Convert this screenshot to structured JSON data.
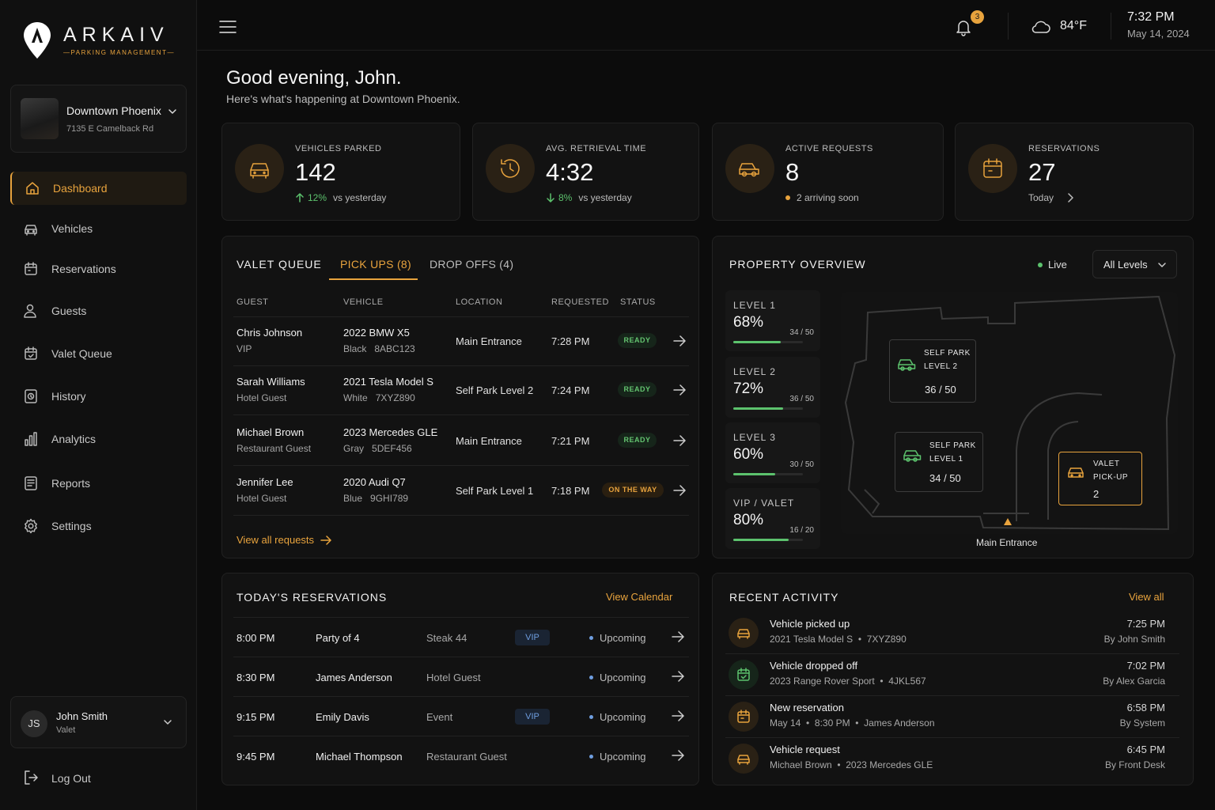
{
  "brand": {
    "name": "ARKAIV",
    "tagline": "PARKING MANAGEMENT"
  },
  "property": {
    "name": "Downtown Phoenix",
    "address": "7135 E Camelback Rd"
  },
  "nav": [
    {
      "label": "Dashboard",
      "icon": "home-icon",
      "active": true
    },
    {
      "label": "Vehicles",
      "icon": "car-icon"
    },
    {
      "label": "Reservations",
      "icon": "calendar-icon"
    },
    {
      "label": "Guests",
      "icon": "user-icon"
    },
    {
      "label": "Valet Queue",
      "icon": "calendar-check-icon"
    },
    {
      "label": "History",
      "icon": "history-icon"
    },
    {
      "label": "Analytics",
      "icon": "bar-chart-icon"
    },
    {
      "label": "Reports",
      "icon": "report-icon"
    },
    {
      "label": "Settings",
      "icon": "gear-icon"
    }
  ],
  "user": {
    "initials": "JS",
    "name": "John Smith",
    "role": "Valet"
  },
  "logout": "Log Out",
  "topbar": {
    "notifications": "3",
    "temperature": "84°F",
    "time": "7:32 PM",
    "date": "May 14, 2024"
  },
  "greeting": {
    "title": "Good evening, John.",
    "subtitle": "Here's what's happening at Downtown Phoenix."
  },
  "stats": [
    {
      "label": "VEHICLES PARKED",
      "value": "142",
      "trend_value": "12%",
      "trend_text": "vs yesterday",
      "trend_dir": "up"
    },
    {
      "label": "AVG. RETRIEVAL TIME",
      "value": "4:32",
      "trend_value": "8%",
      "trend_text": "vs yesterday",
      "trend_dir": "down"
    },
    {
      "label": "ACTIVE REQUESTS",
      "value": "8",
      "note": "2 arriving soon"
    },
    {
      "label": "RESERVATIONS",
      "value": "27",
      "note": "Today"
    }
  ],
  "valet_queue": {
    "title": "VALET QUEUE",
    "tabs": [
      "PICK UPS (8)",
      "DROP OFFS (4)"
    ],
    "columns": [
      "GUEST",
      "VEHICLE",
      "LOCATION",
      "REQUESTED",
      "STATUS"
    ],
    "rows": [
      {
        "guest": "Chris Johnson",
        "guest_type": "VIP",
        "vehicle": "2022 BMW X5",
        "color": "Black",
        "plate": "8ABC123",
        "location": "Main Entrance",
        "requested": "7:28 PM",
        "status": "READY"
      },
      {
        "guest": "Sarah Williams",
        "guest_type": "Hotel Guest",
        "vehicle": "2021 Tesla Model S",
        "color": "White",
        "plate": "7XYZ890",
        "location": "Self Park Level 2",
        "requested": "7:24 PM",
        "status": "READY"
      },
      {
        "guest": "Michael Brown",
        "guest_type": "Restaurant Guest",
        "vehicle": "2023 Mercedes GLE",
        "color": "Gray",
        "plate": "5DEF456",
        "location": "Main Entrance",
        "requested": "7:21 PM",
        "status": "READY"
      },
      {
        "guest": "Jennifer Lee",
        "guest_type": "Hotel Guest",
        "vehicle": "2020 Audi Q7",
        "color": "Blue",
        "plate": "9GHI789",
        "location": "Self Park Level 1",
        "requested": "7:18 PM",
        "status": "ON THE WAY"
      }
    ],
    "view_all": "View all requests"
  },
  "property_overview": {
    "title": "PROPERTY OVERVIEW",
    "live": "Live",
    "level_filter": "All Levels",
    "levels": [
      {
        "name": "LEVEL 1",
        "pct": "68%",
        "count": "34 / 50",
        "fill": 0.68
      },
      {
        "name": "LEVEL 2",
        "pct": "72%",
        "count": "36 / 50",
        "fill": 0.72
      },
      {
        "name": "LEVEL 3",
        "pct": "60%",
        "count": "30 / 50",
        "fill": 0.6
      },
      {
        "name": "VIP / VALET",
        "pct": "80%",
        "count": "16 / 20",
        "fill": 0.8
      }
    ],
    "zones": [
      {
        "line1": "SELF PARK",
        "line2": "LEVEL 2",
        "count": "36 / 50"
      },
      {
        "line1": "SELF PARK",
        "line2": "LEVEL 1",
        "count": "34 / 50"
      },
      {
        "line1": "VALET",
        "line2": "PICK-UP",
        "count": "2"
      }
    ],
    "entrance": "Main Entrance"
  },
  "reservations": {
    "title": "TODAY'S RESERVATIONS",
    "link": "View Calendar",
    "rows": [
      {
        "time": "8:00 PM",
        "name": "Party of 4",
        "category": "Steak 44",
        "vip": "VIP",
        "status": "Upcoming"
      },
      {
        "time": "8:30 PM",
        "name": "James Anderson",
        "category": "Hotel Guest",
        "vip": "",
        "status": "Upcoming"
      },
      {
        "time": "9:15 PM",
        "name": "Emily Davis",
        "category": "Event",
        "vip": "VIP",
        "status": "Upcoming"
      },
      {
        "time": "9:45 PM",
        "name": "Michael Thompson",
        "category": "Restaurant Guest",
        "vip": "",
        "status": "Upcoming"
      }
    ]
  },
  "activity": {
    "title": "RECENT ACTIVITY",
    "link": "View all",
    "rows": [
      {
        "title": "Vehicle picked up",
        "detail": "2021 Tesla Model S  •  7XYZ890",
        "time": "7:25 PM",
        "by": "By John Smith",
        "icon": "car-icon"
      },
      {
        "title": "Vehicle dropped off",
        "detail": "2023 Range Rover Sport  •  4JKL567",
        "time": "7:02 PM",
        "by": "By Alex Garcia",
        "icon": "calendar-check-icon"
      },
      {
        "title": "New reservation",
        "detail": "May 14  •  8:30 PM  •  James Anderson",
        "time": "6:58 PM",
        "by": "By System",
        "icon": "calendar-icon"
      },
      {
        "title": "Vehicle request",
        "detail": "Michael Brown  •  2023 Mercedes GLE",
        "time": "6:45 PM",
        "by": "By Front Desk",
        "icon": "car-icon"
      }
    ]
  },
  "colors": {
    "accent": "#e8a33d",
    "success": "#5cc26d",
    "info": "#6f9ee0",
    "background": "#0c0c0c"
  }
}
